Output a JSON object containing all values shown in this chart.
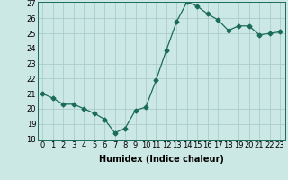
{
  "xlabel": "Humidex (Indice chaleur)",
  "x": [
    0,
    1,
    2,
    3,
    4,
    5,
    6,
    7,
    8,
    9,
    10,
    11,
    12,
    13,
    14,
    15,
    16,
    17,
    18,
    19,
    20,
    21,
    22,
    23
  ],
  "y": [
    21.0,
    20.7,
    20.3,
    20.3,
    20.0,
    19.7,
    19.3,
    18.4,
    18.7,
    19.9,
    20.1,
    21.9,
    23.9,
    25.8,
    27.1,
    26.8,
    26.3,
    25.9,
    25.2,
    25.5,
    25.5,
    24.9,
    25.0,
    25.1
  ],
  "ylim": [
    18,
    27
  ],
  "yticks": [
    18,
    19,
    20,
    21,
    22,
    23,
    24,
    25,
    26,
    27
  ],
  "xlim": [
    -0.5,
    23.5
  ],
  "line_color": "#1a6b5a",
  "marker": "D",
  "marker_size": 2.5,
  "bg_color": "#cce8e4",
  "grid_color": "#aacccc",
  "label_fontsize": 7,
  "tick_fontsize": 6
}
